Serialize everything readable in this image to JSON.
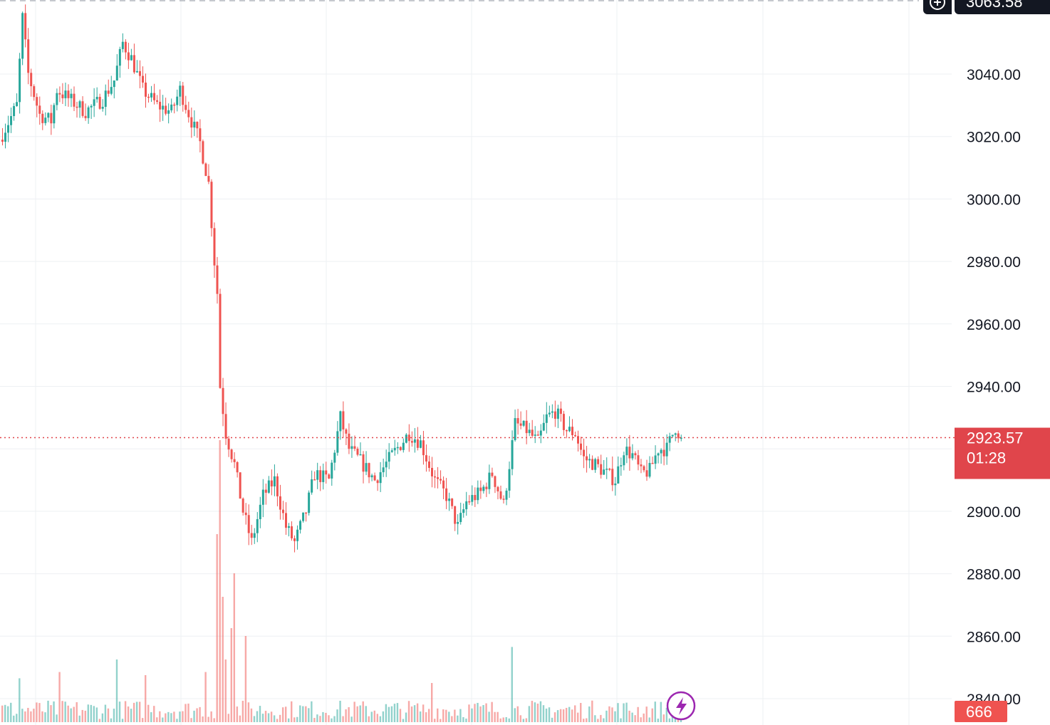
{
  "colors": {
    "up": "#26a69a",
    "down": "#ef5350",
    "price_line": "#e0454b",
    "grid": "#eef0f3",
    "axis_text": "#131722",
    "lightning": "#9c27b0"
  },
  "top_badge": {
    "plus_icon": "plus-circle-icon",
    "price_text": "3063.58"
  },
  "last_price": {
    "price": "2923.57",
    "countdown": "01:28"
  },
  "volume_badge": "666",
  "icons": {
    "lightning": "lightning-icon"
  },
  "chart_data": {
    "type": "candlestick",
    "title": "",
    "xlabel": "",
    "ylabel": "",
    "y_axis_position": "right",
    "ylim": [
      2835,
      3063
    ],
    "yticks": [
      3040,
      3020,
      3000,
      2980,
      2960,
      2940,
      2920,
      2900,
      2880,
      2860,
      2840
    ],
    "ytick_labels": [
      "3040.00",
      "3020.00",
      "3000.00",
      "2980.00",
      "2960.00",
      "2940.00",
      "2920.00",
      "2900.00",
      "2880.00",
      "2860.00",
      "2840.00"
    ],
    "grid": true,
    "last_price": 2923.57,
    "candle_count": 238,
    "anchors": [
      [
        0,
        3019
      ],
      [
        6,
        3030
      ],
      [
        8,
        3058
      ],
      [
        10,
        3040
      ],
      [
        14,
        3027
      ],
      [
        18,
        3025
      ],
      [
        20,
        3035
      ],
      [
        30,
        3028
      ],
      [
        36,
        3032
      ],
      [
        40,
        3038
      ],
      [
        43,
        3050
      ],
      [
        46,
        3045
      ],
      [
        50,
        3035
      ],
      [
        55,
        3030
      ],
      [
        60,
        3028
      ],
      [
        63,
        3035
      ],
      [
        67,
        3025
      ],
      [
        70,
        3018
      ],
      [
        73,
        3005
      ],
      [
        75,
        2980
      ],
      [
        76,
        2970
      ],
      [
        77,
        2940
      ],
      [
        79,
        2925
      ],
      [
        82,
        2915
      ],
      [
        85,
        2900
      ],
      [
        88,
        2890
      ],
      [
        92,
        2905
      ],
      [
        96,
        2910
      ],
      [
        100,
        2895
      ],
      [
        103,
        2890
      ],
      [
        107,
        2900
      ],
      [
        110,
        2912
      ],
      [
        115,
        2910
      ],
      [
        119,
        2930
      ],
      [
        122,
        2920
      ],
      [
        126,
        2916
      ],
      [
        131,
        2910
      ],
      [
        137,
        2918
      ],
      [
        143,
        2925
      ],
      [
        147,
        2922
      ],
      [
        152,
        2910
      ],
      [
        156,
        2905
      ],
      [
        160,
        2895
      ],
      [
        163,
        2903
      ],
      [
        168,
        2906
      ],
      [
        172,
        2912
      ],
      [
        176,
        2902
      ],
      [
        178,
        2915
      ],
      [
        180,
        2928
      ],
      [
        184,
        2926
      ],
      [
        188,
        2922
      ],
      [
        191,
        2930
      ],
      [
        194,
        2932
      ],
      [
        198,
        2926
      ],
      [
        201,
        2925
      ],
      [
        204,
        2917
      ],
      [
        208,
        2915
      ],
      [
        212,
        2912
      ],
      [
        215,
        2910
      ],
      [
        218,
        2920
      ],
      [
        221,
        2918
      ],
      [
        224,
        2912
      ],
      [
        227,
        2913
      ],
      [
        230,
        2920
      ],
      [
        233,
        2920
      ],
      [
        236,
        2927
      ],
      [
        238,
        2923.57
      ]
    ],
    "volume": {
      "base_min": 2,
      "base_max": 14,
      "spikes": [
        [
          75,
          120
        ],
        [
          76,
          180
        ],
        [
          77,
          80
        ],
        [
          78,
          40
        ],
        [
          80,
          60
        ],
        [
          81,
          95
        ],
        [
          85,
          55
        ],
        [
          40,
          40
        ],
        [
          20,
          32
        ],
        [
          6,
          28
        ],
        [
          178,
          48
        ],
        [
          50,
          30
        ],
        [
          71,
          32
        ],
        [
          150,
          25
        ]
      ]
    }
  }
}
